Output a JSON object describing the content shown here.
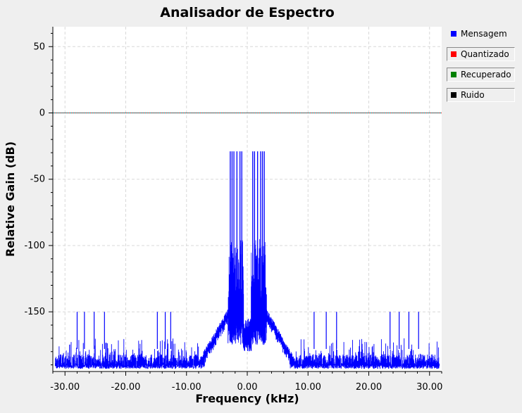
{
  "chart_data": {
    "type": "line",
    "title": "Analisador de Espectro",
    "xlabel": "Frequency (kHz)",
    "ylabel": "Relative Gain (dB)",
    "xlim": [
      -32.0,
      32.0
    ],
    "ylim": [
      -195,
      65
    ],
    "x_ticks": [
      -30,
      -20,
      -10,
      0,
      10,
      20,
      30
    ],
    "x_tick_labels": [
      "-30.00",
      "-20.00",
      "-10.00",
      "0.00",
      "10.00",
      "20.00",
      "30.00"
    ],
    "y_ticks": [
      50,
      0,
      -50,
      -100,
      -150
    ],
    "y_tick_labels": [
      "50",
      "0",
      "-50",
      "-100",
      "-150"
    ],
    "grid": true,
    "legend_position": "right",
    "noise_floor_db": [
      -193,
      -178
    ],
    "series": [
      {
        "name": "Mensagem",
        "color": "#0000ff",
        "peaks": [
          {
            "x": -2.8,
            "y": -29
          },
          {
            "x": -2.5,
            "y": -29
          },
          {
            "x": -2.2,
            "y": -29
          },
          {
            "x": -1.7,
            "y": -29
          },
          {
            "x": -1.2,
            "y": -29
          },
          {
            "x": -0.9,
            "y": -29
          },
          {
            "x": 0.9,
            "y": -29
          },
          {
            "x": 1.2,
            "y": -29
          },
          {
            "x": 1.7,
            "y": -29
          },
          {
            "x": 2.2,
            "y": -29
          },
          {
            "x": 2.5,
            "y": -29
          },
          {
            "x": 2.8,
            "y": -29
          }
        ],
        "spurs": [
          {
            "x": -28.0,
            "y": -150
          },
          {
            "x": -26.8,
            "y": -150
          },
          {
            "x": -25.2,
            "y": -150
          },
          {
            "x": -23.5,
            "y": -150
          },
          {
            "x": -14.8,
            "y": -150
          },
          {
            "x": -13.5,
            "y": -150
          },
          {
            "x": -12.6,
            "y": -150
          },
          {
            "x": 11.0,
            "y": -150
          },
          {
            "x": 13.0,
            "y": -150
          },
          {
            "x": 14.7,
            "y": -150
          },
          {
            "x": 23.5,
            "y": -150
          },
          {
            "x": 25.0,
            "y": -150
          },
          {
            "x": 26.6,
            "y": -150
          },
          {
            "x": 28.2,
            "y": -150
          }
        ]
      },
      {
        "name": "Quantizado",
        "color": "#ff0000",
        "level_db": 0
      },
      {
        "name": "Recuperado",
        "color": "#008000",
        "level_db": 0
      },
      {
        "name": "Ruido",
        "color": "#000000",
        "level_db": 0
      }
    ]
  }
}
